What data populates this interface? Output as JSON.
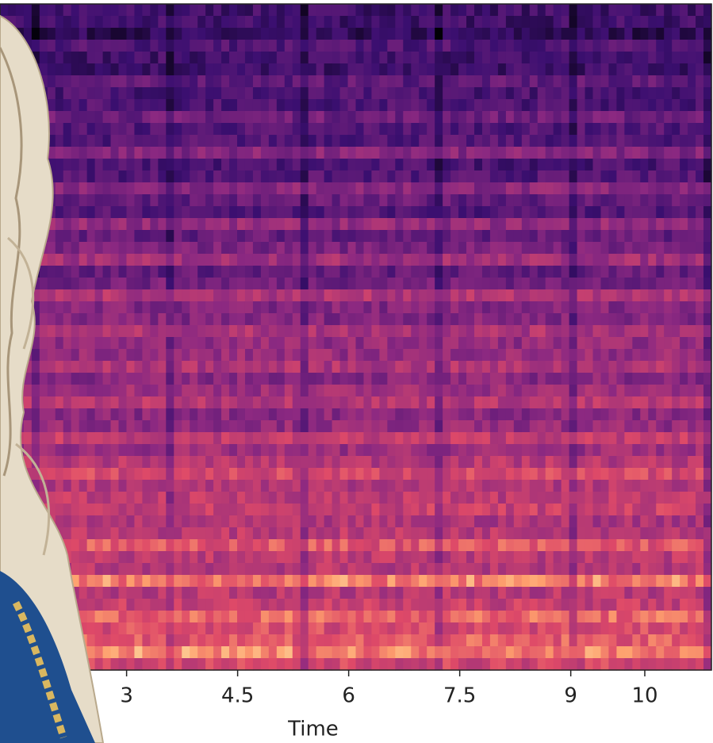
{
  "chart_data": {
    "type": "spectrogram",
    "xlabel": "Time",
    "xlim": [
      1.29,
      10.9
    ],
    "xticks": [
      3,
      4.5,
      6,
      7.5,
      9,
      10
    ]
  }
}
